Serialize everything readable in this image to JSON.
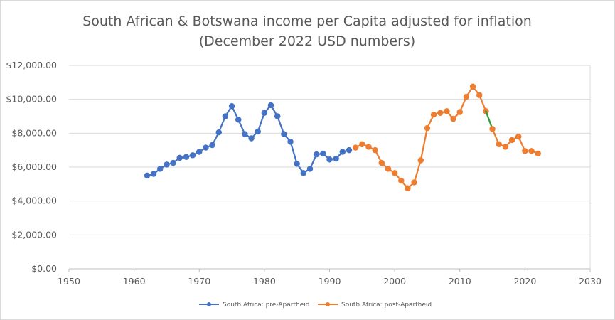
{
  "chart_data": {
    "type": "line",
    "title": "South African & Botswana income per Capita adjusted for inflation",
    "subtitle": "(December 2022 USD numbers)",
    "xlim": [
      1950,
      2030
    ],
    "ylim": [
      0,
      12000
    ],
    "x_ticks": [
      "1950",
      "1960",
      "1970",
      "1980",
      "1990",
      "2000",
      "2010",
      "2020",
      "2030"
    ],
    "y_ticks": [
      "$0.00",
      "$2,000.00",
      "$4,000.00",
      "$6,000.00",
      "$8,000.00",
      "$10,000.00",
      "$12,000.00"
    ],
    "grid": "horizontal",
    "legend_position": "bottom",
    "series": [
      {
        "name": "South Africa: pre-Apartheid",
        "color": "#4472C4",
        "x": [
          1962,
          1963,
          1964,
          1965,
          1966,
          1967,
          1968,
          1969,
          1970,
          1971,
          1972,
          1973,
          1974,
          1975,
          1976,
          1977,
          1978,
          1979,
          1980,
          1981,
          1982,
          1983,
          1984,
          1985,
          1986,
          1987,
          1988,
          1989,
          1990,
          1991,
          1992,
          1993
        ],
        "y": [
          5500,
          5600,
          5900,
          6150,
          6250,
          6550,
          6600,
          6700,
          6900,
          7150,
          7300,
          8050,
          9000,
          9600,
          8800,
          7950,
          7700,
          8100,
          9200,
          9650,
          9000,
          7950,
          7500,
          6200,
          5650,
          5900,
          6750,
          6800,
          6450,
          6500,
          6900,
          7000
        ]
      },
      {
        "name": "South Africa: post-Apartheid",
        "color": "#ED7D31",
        "x": [
          1994,
          1995,
          1996,
          1997,
          1998,
          1999,
          2000,
          2001,
          2002,
          2003,
          2004,
          2005,
          2006,
          2007,
          2008,
          2009,
          2010,
          2011,
          2012,
          2013,
          2014
        ],
        "y": [
          7150,
          7350,
          7200,
          7000,
          6250,
          5900,
          5650,
          5200,
          4750,
          5100,
          6400,
          8300,
          9100,
          9200,
          9300,
          8850,
          9250,
          10150,
          10750,
          10250,
          9300
        ]
      },
      {
        "name": "",
        "color": "#2E9E3A",
        "x": [
          2014,
          2015
        ],
        "y": [
          9300,
          8250
        ],
        "markers": false
      },
      {
        "name": "",
        "color": "#ED7D31",
        "x": [
          2015,
          2016,
          2017,
          2018,
          2019,
          2020,
          2021,
          2022
        ],
        "y": [
          8250,
          7350,
          7200,
          7600,
          7800,
          6950,
          6950,
          6800
        ]
      }
    ]
  }
}
